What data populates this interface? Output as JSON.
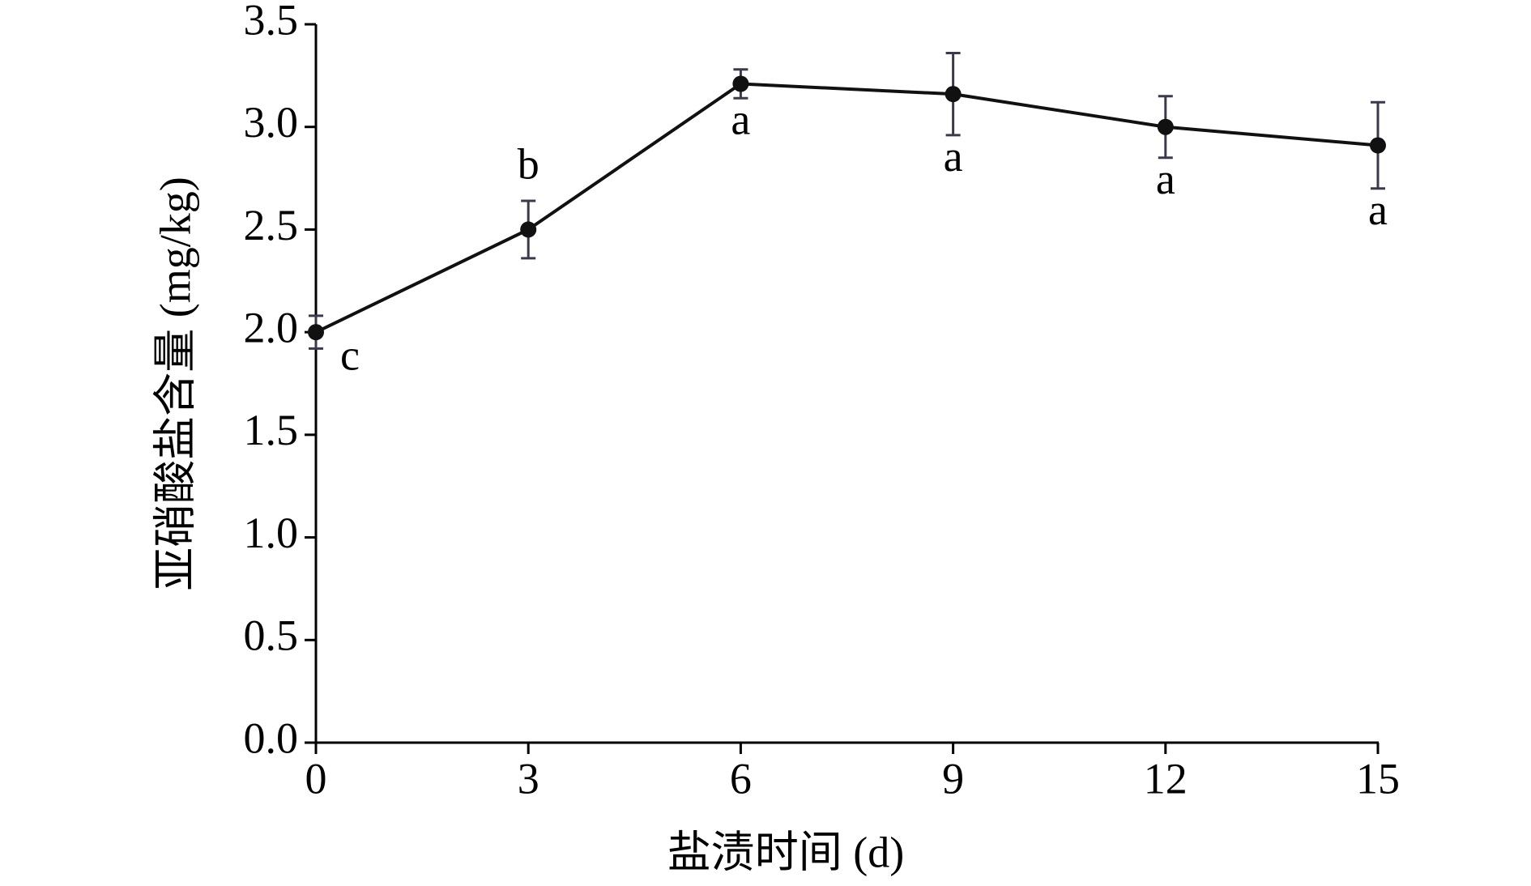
{
  "chart_data": {
    "type": "line",
    "xlabel": "盐渍时间 (d)",
    "ylabel": "亚硝酸盐含量 (mg/kg)",
    "x": [
      0,
      3,
      6,
      9,
      12,
      15
    ],
    "values": [
      2.0,
      2.5,
      3.21,
      3.16,
      3.0,
      2.91
    ],
    "errors": [
      0.08,
      0.14,
      0.07,
      0.2,
      0.15,
      0.21
    ],
    "point_labels": [
      "c",
      "b",
      "a",
      "a",
      "a",
      "a"
    ],
    "color": "#111111",
    "error_color": "#3a3a4a",
    "xlim": [
      0,
      15
    ],
    "xticks": [
      0,
      3,
      6,
      9,
      12,
      15
    ],
    "ylim": [
      0,
      3.5
    ],
    "yticks": [
      {
        "value": 0,
        "label": "0.0"
      },
      0.5,
      {
        "value": 1,
        "label": "1.0"
      },
      1.5,
      {
        "value": 2,
        "label": "2.0"
      },
      2.5,
      {
        "value": 3,
        "label": "3.0"
      },
      3.5
    ],
    "grid": false
  }
}
